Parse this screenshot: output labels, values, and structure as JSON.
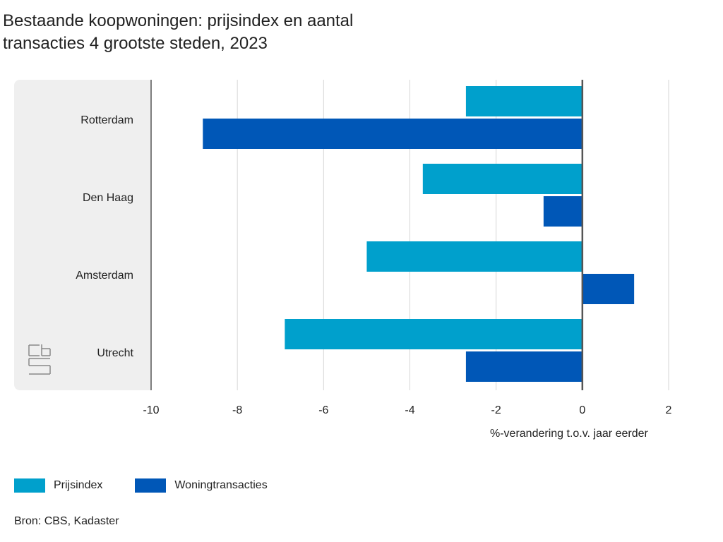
{
  "title_lines": [
    "Bestaande koopwoningen: prijsindex en aantal",
    "transacties 4 grootste steden, 2023"
  ],
  "source": "Bron: CBS, Kadaster",
  "logo_text": "cbs",
  "chart_data": {
    "type": "bar",
    "orientation": "horizontal",
    "title": "Bestaande koopwoningen: prijsindex en aantal transacties 4 grootste steden, 2023",
    "categories": [
      "Rotterdam",
      "Den Haag",
      "Amsterdam",
      "Utrecht"
    ],
    "series": [
      {
        "name": "Prijsindex",
        "color": "#00a0cc",
        "values": [
          -2.7,
          -3.7,
          -5.0,
          -6.9
        ]
      },
      {
        "name": "Woningtransacties",
        "color": "#0057b7",
        "values": [
          -8.8,
          -0.9,
          1.2,
          -2.7
        ]
      }
    ],
    "xlabel": "%-verandering t.o.v. jaar eerder",
    "xlim": [
      -10,
      2
    ],
    "xticks": [
      -10,
      -8,
      -6,
      -4,
      -2,
      0,
      2
    ],
    "grid": true,
    "legend": "bottom-left"
  }
}
